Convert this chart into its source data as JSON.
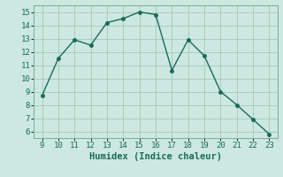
{
  "x": [
    9,
    10,
    11,
    12,
    13,
    14,
    15,
    16,
    17,
    18,
    19,
    20,
    21,
    22,
    23
  ],
  "y": [
    8.7,
    11.5,
    12.9,
    12.5,
    14.2,
    14.5,
    15.0,
    14.8,
    10.6,
    12.9,
    11.7,
    9.0,
    8.0,
    6.9,
    5.8
  ],
  "line_color": "#1a6b5a",
  "marker": "o",
  "marker_size": 2.5,
  "linewidth": 1.0,
  "xlabel": "Humidex (Indice chaleur)",
  "xlim": [
    8.5,
    23.5
  ],
  "ylim": [
    5.5,
    15.5
  ],
  "xticks": [
    9,
    10,
    11,
    12,
    13,
    14,
    15,
    16,
    17,
    18,
    19,
    20,
    21,
    22,
    23
  ],
  "yticks": [
    6,
    7,
    8,
    9,
    10,
    11,
    12,
    13,
    14,
    15
  ],
  "bg_color": "#cce8e0",
  "grid_color": "#aaccbf",
  "tick_label_fontsize": 6.5,
  "xlabel_fontsize": 7.5,
  "font_family": "monospace"
}
